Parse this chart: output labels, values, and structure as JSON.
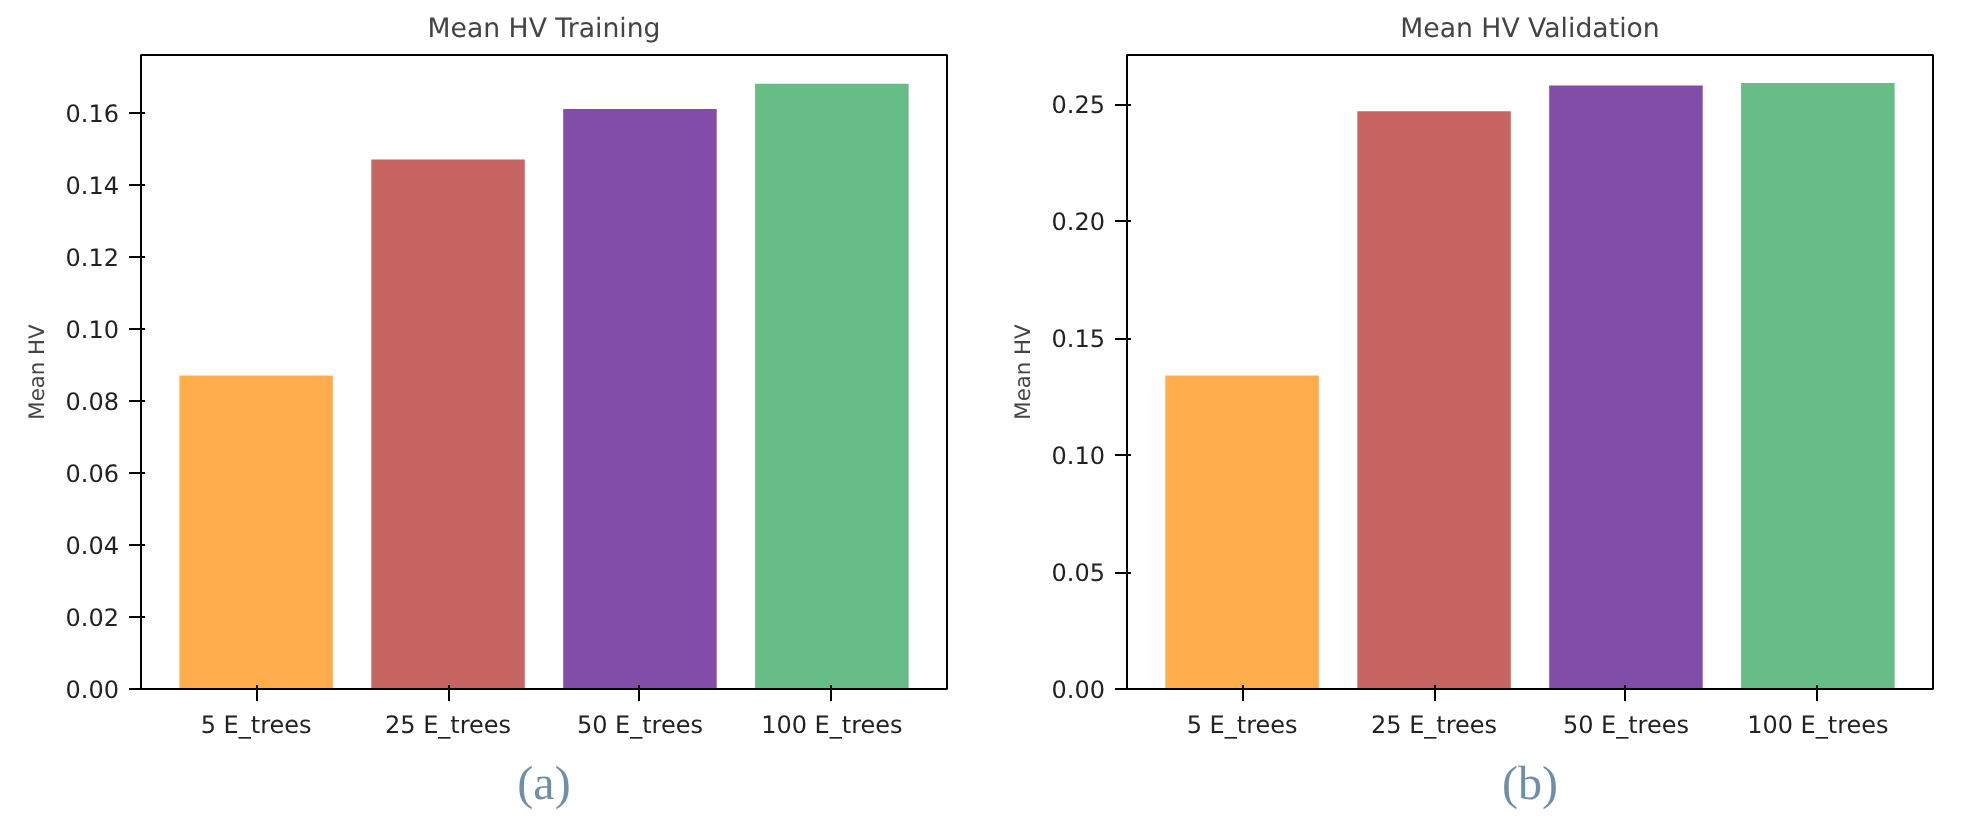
{
  "chart_data": [
    {
      "type": "bar",
      "title": "Mean HV Training",
      "ylabel": "Mean HV",
      "categories": [
        "5 E_trees",
        "25 E_trees",
        "50 E_trees",
        "100 E_trees"
      ],
      "values": [
        0.087,
        0.147,
        0.161,
        0.168
      ],
      "colors": [
        "#ffad4d",
        "#c76563",
        "#824da8",
        "#66bd86"
      ],
      "ylim": [
        0,
        0.176
      ],
      "yticks": [
        {
          "value": 0,
          "label": "0.00"
        },
        0.02,
        0.04,
        0.06,
        0.08,
        {
          "value": 0.1,
          "label": "0.10"
        },
        0.12,
        0.14,
        0.16
      ],
      "grid": false,
      "annotations": [
        "(a)"
      ]
    },
    {
      "type": "bar",
      "title": "Mean HV Validation",
      "ylabel": "Mean HV",
      "categories": [
        "5 E_trees",
        "25 E_trees",
        "50 E_trees",
        "100 E_trees"
      ],
      "values": [
        0.134,
        0.247,
        0.258,
        0.259
      ],
      "colors": [
        "#ffad4d",
        "#c76563",
        "#824da8",
        "#66bd86"
      ],
      "ylim": [
        0,
        0.271
      ],
      "yticks": [
        {
          "value": 0,
          "label": "0.00"
        },
        0.05,
        {
          "value": 0.1,
          "label": "0.10"
        },
        0.15,
        {
          "value": 0.2,
          "label": "0.20"
        },
        0.25
      ],
      "grid": false,
      "annotations": [
        "(b)"
      ]
    }
  ]
}
